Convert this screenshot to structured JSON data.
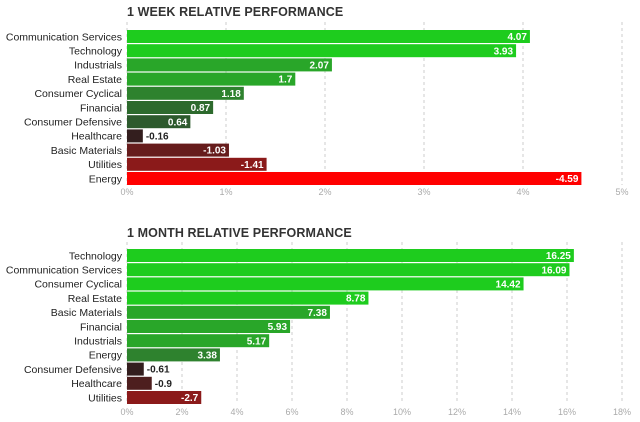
{
  "chart_data": [
    {
      "type": "bar",
      "orientation": "horizontal",
      "title": "1 WEEK RELATIVE PERFORMANCE",
      "categories": [
        "Communication Services",
        "Technology",
        "Industrials",
        "Real Estate",
        "Consumer Cyclical",
        "Financial",
        "Consumer Defensive",
        "Healthcare",
        "Basic Materials",
        "Utilities",
        "Energy"
      ],
      "values": [
        4.07,
        3.93,
        2.07,
        1.7,
        1.18,
        0.87,
        0.64,
        -0.16,
        -1.03,
        -1.41,
        -4.59
      ],
      "value_labels": [
        "4.07",
        "3.93",
        "2.07",
        "1.7",
        "1.18",
        "0.87",
        "0.64",
        "-0.16",
        "-1.03",
        "-1.41",
        "-4.59"
      ],
      "bar_colors": [
        "#1ecc1e",
        "#1ecc1e",
        "#29a629",
        "#29a629",
        "#2e822e",
        "#2d6a2d",
        "#2d5a2d",
        "#331e1e",
        "#661c1c",
        "#8b1a1a",
        "#ff0000"
      ],
      "xlim": [
        0,
        5
      ],
      "xticks": [
        0,
        1,
        2,
        3,
        4,
        5
      ],
      "xtick_labels": [
        "0%",
        "1%",
        "2%",
        "3%",
        "4%",
        "5%"
      ],
      "bars_use_absolute_value": true
    },
    {
      "type": "bar",
      "orientation": "horizontal",
      "title": "1 MONTH RELATIVE PERFORMANCE",
      "categories": [
        "Technology",
        "Communication Services",
        "Consumer Cyclical",
        "Real Estate",
        "Basic Materials",
        "Financial",
        "Industrials",
        "Energy",
        "Consumer Defensive",
        "Healthcare",
        "Utilities"
      ],
      "values": [
        16.25,
        16.09,
        14.42,
        8.78,
        7.38,
        5.93,
        5.17,
        3.38,
        -0.61,
        -0.9,
        -2.7
      ],
      "value_labels": [
        "16.25",
        "16.09",
        "14.42",
        "8.78",
        "7.38",
        "5.93",
        "5.17",
        "3.38",
        "-0.61",
        "-0.9",
        "-2.7"
      ],
      "bar_colors": [
        "#1ecc1e",
        "#1ecc1e",
        "#1ecc1e",
        "#1ecc1e",
        "#29a629",
        "#29a629",
        "#29a629",
        "#2e822e",
        "#331e1e",
        "#4d1e1e",
        "#8b1a1a"
      ],
      "xlim": [
        0,
        18
      ],
      "xticks": [
        0,
        2,
        4,
        6,
        8,
        10,
        12,
        14,
        16,
        18
      ],
      "xtick_labels": [
        "0%",
        "2%",
        "4%",
        "6%",
        "8%",
        "10%",
        "12%",
        "14%",
        "16%",
        "18%"
      ],
      "bars_use_absolute_value": true
    }
  ]
}
